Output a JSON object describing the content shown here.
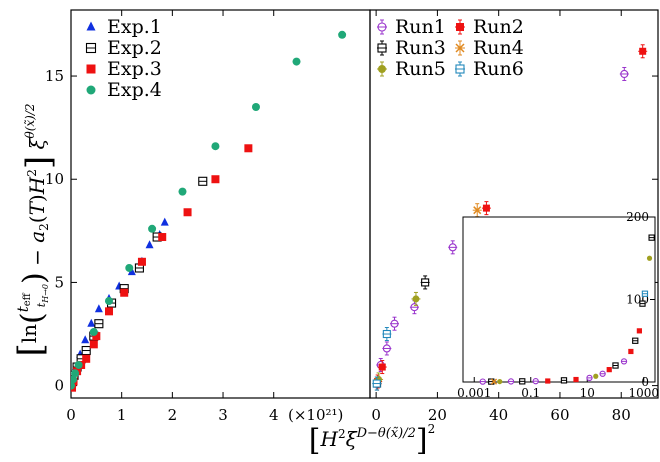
{
  "chart_data": [
    {
      "type": "scatter",
      "panel": "left",
      "x_scale_text": "(×10²¹)",
      "xlim": [
        0,
        5.9
      ],
      "ylim": [
        -0.6,
        18.2
      ],
      "xticks": [
        0,
        1,
        2,
        3,
        4
      ],
      "yticks": [
        0,
        5,
        10,
        15
      ],
      "legend_position": "top-left",
      "series": [
        {
          "name": "Exp.1",
          "marker": "triangle",
          "color": "#1030e0",
          "points": [
            [
              0.02,
              0.1
            ],
            [
              0.05,
              0.4
            ],
            [
              0.1,
              0.9
            ],
            [
              0.18,
              1.5
            ],
            [
              0.28,
              2.2
            ],
            [
              0.4,
              3.0
            ],
            [
              0.55,
              3.7
            ],
            [
              0.75,
              4.2
            ],
            [
              0.95,
              4.8
            ],
            [
              1.2,
              5.5
            ],
            [
              1.4,
              6.0
            ],
            [
              1.55,
              6.8
            ],
            [
              1.75,
              7.3
            ],
            [
              1.85,
              7.9
            ]
          ]
        },
        {
          "name": "Exp.2",
          "marker": "square-open",
          "color": "#000000",
          "points": [
            [
              0.0,
              0.0
            ],
            [
              0.03,
              0.2
            ],
            [
              0.06,
              0.5
            ],
            [
              0.12,
              0.9
            ],
            [
              0.2,
              1.3
            ],
            [
              0.3,
              1.7
            ],
            [
              0.45,
              2.4
            ],
            [
              0.55,
              3.0
            ],
            [
              0.8,
              4.0
            ],
            [
              1.05,
              4.7
            ],
            [
              1.35,
              5.7
            ],
            [
              1.7,
              7.2
            ],
            [
              2.6,
              9.9
            ]
          ]
        },
        {
          "name": "Exp.3",
          "marker": "square",
          "color": "#ee1111",
          "points": [
            [
              0.02,
              -0.1
            ],
            [
              0.05,
              0.2
            ],
            [
              0.12,
              0.7
            ],
            [
              0.2,
              1.0
            ],
            [
              0.3,
              1.3
            ],
            [
              0.45,
              2.0
            ],
            [
              0.5,
              2.4
            ],
            [
              0.75,
              3.6
            ],
            [
              1.05,
              4.5
            ],
            [
              1.4,
              6.0
            ],
            [
              1.8,
              7.2
            ],
            [
              2.3,
              8.4
            ],
            [
              2.85,
              10.0
            ],
            [
              3.5,
              11.5
            ]
          ]
        },
        {
          "name": "Exp.4",
          "marker": "circle",
          "color": "#20a878",
          "points": [
            [
              0.0,
              0.0
            ],
            [
              0.04,
              0.3
            ],
            [
              0.08,
              0.6
            ],
            [
              0.15,
              1.0
            ],
            [
              0.45,
              2.6
            ],
            [
              0.75,
              4.1
            ],
            [
              1.15,
              5.7
            ],
            [
              1.6,
              7.6
            ],
            [
              2.2,
              9.4
            ],
            [
              2.85,
              11.6
            ],
            [
              3.65,
              13.5
            ],
            [
              4.45,
              15.7
            ],
            [
              5.35,
              17.0
            ]
          ]
        }
      ]
    },
    {
      "type": "scatter",
      "panel": "right",
      "xlim": [
        -2,
        92
      ],
      "ylim": [
        -0.6,
        18.2
      ],
      "xticks": [
        0,
        20,
        40,
        60,
        80
      ],
      "legend_position": "top",
      "series": [
        {
          "name": "Run1",
          "marker": "circle-open-errorbar",
          "color": "#9933cc",
          "points": [
            [
              1.5,
              1.0
            ],
            [
              3.5,
              1.8
            ],
            [
              6,
              3.0
            ],
            [
              12.5,
              3.8
            ],
            [
              25,
              6.7
            ],
            [
              81,
              15.1
            ]
          ]
        },
        {
          "name": "Run2",
          "marker": "square-errorbar",
          "color": "#ee1111",
          "points": [
            [
              0.5,
              0.2
            ],
            [
              2,
              0.9
            ],
            [
              36,
              8.6
            ],
            [
              87,
              16.2
            ]
          ]
        },
        {
          "name": "Run3",
          "marker": "square-open-errorbar",
          "color": "#000000",
          "points": [
            [
              0.3,
              0.1
            ],
            [
              16,
              5.0
            ]
          ]
        },
        {
          "name": "Run4",
          "marker": "x-errorbar",
          "color": "#e08a20",
          "points": [
            [
              33,
              8.5
            ]
          ]
        },
        {
          "name": "Run5",
          "marker": "circle-errorbar",
          "color": "#a0a020",
          "points": [
            [
              0.8,
              0.3
            ],
            [
              13,
              4.2
            ]
          ]
        },
        {
          "name": "Run6",
          "marker": "square-open-errorbar",
          "color": "#2288bb",
          "points": [
            [
              0.2,
              0.1
            ],
            [
              3.5,
              2.5
            ]
          ]
        }
      ],
      "inset": {
        "x_scale": "log",
        "xlim": [
          0.0004,
          2500
        ],
        "ylim": [
          0,
          200
        ],
        "xtick_labels": [
          "0.001",
          "0.1",
          "10",
          "1000"
        ],
        "ytick_labels": [
          "0",
          "100",
          "200"
        ],
        "points": [
          {
            "series": "Run1",
            "x": 0.002,
            "y": 0.5
          },
          {
            "series": "Run3",
            "x": 0.004,
            "y": 0.5
          },
          {
            "series": "Run4",
            "x": 0.005,
            "y": 0.5
          },
          {
            "series": "Run5",
            "x": 0.008,
            "y": 0.5
          },
          {
            "series": "Run1",
            "x": 0.02,
            "y": 0.7
          },
          {
            "series": "Run3",
            "x": 0.05,
            "y": 0.8
          },
          {
            "series": "Run1",
            "x": 0.15,
            "y": 1.0
          },
          {
            "series": "Run2",
            "x": 0.4,
            "y": 1.2
          },
          {
            "series": "Run3",
            "x": 1.5,
            "y": 2.0
          },
          {
            "series": "Run2",
            "x": 4,
            "y": 3.0
          },
          {
            "series": "Run1",
            "x": 12,
            "y": 5.0
          },
          {
            "series": "Run5",
            "x": 20,
            "y": 7.0
          },
          {
            "series": "Run1",
            "x": 35,
            "y": 10.0
          },
          {
            "series": "Run2",
            "x": 60,
            "y": 15.0
          },
          {
            "series": "Run3",
            "x": 100,
            "y": 20.0
          },
          {
            "series": "Run1",
            "x": 200,
            "y": 25.0
          },
          {
            "series": "Run2",
            "x": 350,
            "y": 37.0
          },
          {
            "series": "Run3",
            "x": 500,
            "y": 50.0
          },
          {
            "series": "Run2",
            "x": 700,
            "y": 62.0
          },
          {
            "series": "Run3",
            "x": 900,
            "y": 95.0
          },
          {
            "series": "Run6",
            "x": 1100,
            "y": 107.0
          },
          {
            "series": "Run5",
            "x": 1600,
            "y": 150.0
          },
          {
            "series": "Run3",
            "x": 1900,
            "y": 175.0
          }
        ]
      }
    }
  ]
}
